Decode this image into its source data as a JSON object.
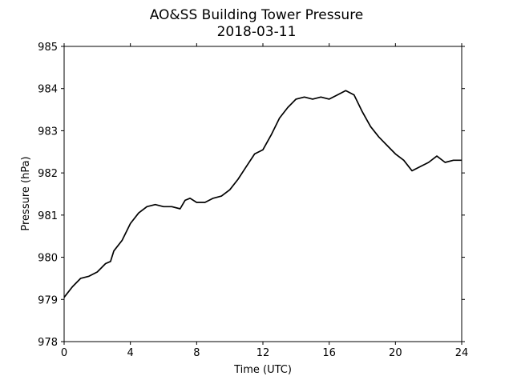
{
  "chart_data": {
    "type": "line",
    "title": "AO&SS Building Tower Pressure",
    "subtitle": "2018-03-11",
    "xlabel": "Time (UTC)",
    "ylabel": "Pressure (hPa)",
    "xlim": [
      0,
      24
    ],
    "ylim": [
      978,
      985
    ],
    "xticks": [
      0,
      4,
      8,
      12,
      16,
      20,
      24
    ],
    "yticks": [
      978,
      979,
      980,
      981,
      982,
      983,
      984,
      985
    ],
    "grid": false,
    "line_color": "#000000",
    "series": [
      {
        "x": [
          0,
          0.5,
          1,
          1.5,
          2,
          2.5,
          2.8,
          3,
          3.5,
          4,
          4.5,
          5,
          5.5,
          6,
          6.5,
          7,
          7.3,
          7.6,
          8,
          8.5,
          9,
          9.5,
          10,
          10.5,
          11,
          11.5,
          12,
          12.5,
          13,
          13.5,
          14,
          14.5,
          15,
          15.5,
          16,
          16.5,
          17,
          17.5,
          18,
          18.5,
          19,
          19.5,
          20,
          20.5,
          21,
          21.5,
          22,
          22.5,
          23,
          23.5,
          24
        ],
        "y": [
          979.05,
          979.3,
          979.5,
          979.55,
          979.65,
          979.85,
          979.9,
          980.15,
          980.4,
          980.8,
          981.05,
          981.2,
          981.25,
          981.2,
          981.2,
          981.15,
          981.35,
          981.4,
          981.3,
          981.3,
          981.4,
          981.45,
          981.6,
          981.85,
          982.15,
          982.45,
          982.55,
          982.9,
          983.3,
          983.55,
          983.75,
          983.8,
          983.75,
          983.8,
          983.75,
          983.85,
          983.95,
          983.85,
          983.45,
          983.1,
          982.85,
          982.65,
          982.45,
          982.3,
          982.05,
          982.15,
          982.25,
          982.4,
          982.25,
          982.3,
          982.3
        ]
      }
    ]
  }
}
